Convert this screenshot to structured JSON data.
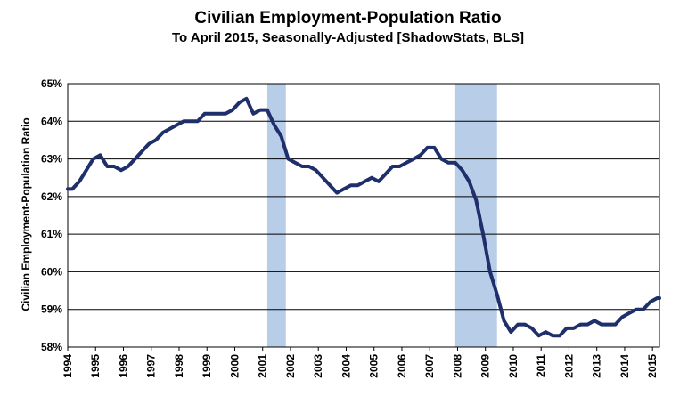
{
  "chart_data": {
    "type": "line",
    "title": "Civilian Employment-Population  Ratio",
    "subtitle": "To April 2015, Seasonally-Adjusted [ShadowStats, BLS]",
    "ylabel": "Civilian Employment-Population  Ratio",
    "xlabel": "",
    "ylim": [
      58,
      65
    ],
    "xlim": [
      "1994-01",
      "2015-04"
    ],
    "y_ticks": [
      "58%",
      "59%",
      "60%",
      "61%",
      "62%",
      "63%",
      "64%",
      "65%"
    ],
    "x_ticks": [
      "1994",
      "1995",
      "1996",
      "1997",
      "1998",
      "1999",
      "2000",
      "2001",
      "2002",
      "2003",
      "2004",
      "2005",
      "2006",
      "2007",
      "2008",
      "2009",
      "2010",
      "2011",
      "2012",
      "2013",
      "2014",
      "2015"
    ],
    "grid": true,
    "recessions": [
      {
        "start": "2001-03",
        "end": "2001-11"
      },
      {
        "start": "2007-12",
        "end": "2009-06"
      }
    ],
    "series": [
      {
        "color": "#1f2f6b",
        "points": [
          [
            "1994-01",
            62.2
          ],
          [
            "1994-03",
            62.2
          ],
          [
            "1994-06",
            62.4
          ],
          [
            "1994-09",
            62.7
          ],
          [
            "1994-12",
            63.0
          ],
          [
            "1995-03",
            63.1
          ],
          [
            "1995-06",
            62.8
          ],
          [
            "1995-09",
            62.8
          ],
          [
            "1995-12",
            62.7
          ],
          [
            "1996-03",
            62.8
          ],
          [
            "1996-06",
            63.0
          ],
          [
            "1996-09",
            63.2
          ],
          [
            "1996-12",
            63.4
          ],
          [
            "1997-03",
            63.5
          ],
          [
            "1997-06",
            63.7
          ],
          [
            "1997-09",
            63.8
          ],
          [
            "1997-12",
            63.9
          ],
          [
            "1998-03",
            64.0
          ],
          [
            "1998-06",
            64.0
          ],
          [
            "1998-09",
            64.0
          ],
          [
            "1998-12",
            64.2
          ],
          [
            "1999-03",
            64.2
          ],
          [
            "1999-06",
            64.2
          ],
          [
            "1999-09",
            64.2
          ],
          [
            "1999-12",
            64.3
          ],
          [
            "2000-03",
            64.5
          ],
          [
            "2000-06",
            64.6
          ],
          [
            "2000-09",
            64.2
          ],
          [
            "2000-12",
            64.3
          ],
          [
            "2001-03",
            64.3
          ],
          [
            "2001-06",
            63.9
          ],
          [
            "2001-09",
            63.6
          ],
          [
            "2001-12",
            63.0
          ],
          [
            "2002-03",
            62.9
          ],
          [
            "2002-06",
            62.8
          ],
          [
            "2002-09",
            62.8
          ],
          [
            "2002-12",
            62.7
          ],
          [
            "2003-03",
            62.5
          ],
          [
            "2003-06",
            62.3
          ],
          [
            "2003-09",
            62.1
          ],
          [
            "2003-12",
            62.2
          ],
          [
            "2004-03",
            62.3
          ],
          [
            "2004-06",
            62.3
          ],
          [
            "2004-09",
            62.4
          ],
          [
            "2004-12",
            62.5
          ],
          [
            "2005-03",
            62.4
          ],
          [
            "2005-06",
            62.6
          ],
          [
            "2005-09",
            62.8
          ],
          [
            "2005-12",
            62.8
          ],
          [
            "2006-03",
            62.9
          ],
          [
            "2006-06",
            63.0
          ],
          [
            "2006-09",
            63.1
          ],
          [
            "2006-12",
            63.3
          ],
          [
            "2007-03",
            63.3
          ],
          [
            "2007-06",
            63.0
          ],
          [
            "2007-09",
            62.9
          ],
          [
            "2007-12",
            62.9
          ],
          [
            "2008-03",
            62.7
          ],
          [
            "2008-06",
            62.4
          ],
          [
            "2008-09",
            61.9
          ],
          [
            "2008-12",
            61.0
          ],
          [
            "2009-03",
            60.0
          ],
          [
            "2009-06",
            59.4
          ],
          [
            "2009-09",
            58.7
          ],
          [
            "2009-12",
            58.4
          ],
          [
            "2010-03",
            58.6
          ],
          [
            "2010-06",
            58.6
          ],
          [
            "2010-09",
            58.5
          ],
          [
            "2010-12",
            58.3
          ],
          [
            "2011-03",
            58.4
          ],
          [
            "2011-06",
            58.3
          ],
          [
            "2011-09",
            58.3
          ],
          [
            "2011-12",
            58.5
          ],
          [
            "2012-03",
            58.5
          ],
          [
            "2012-06",
            58.6
          ],
          [
            "2012-09",
            58.6
          ],
          [
            "2012-12",
            58.7
          ],
          [
            "2013-03",
            58.6
          ],
          [
            "2013-06",
            58.6
          ],
          [
            "2013-09",
            58.6
          ],
          [
            "2013-12",
            58.8
          ],
          [
            "2014-03",
            58.9
          ],
          [
            "2014-06",
            59.0
          ],
          [
            "2014-09",
            59.0
          ],
          [
            "2014-12",
            59.2
          ],
          [
            "2015-03",
            59.3
          ],
          [
            "2015-04",
            59.3
          ]
        ]
      }
    ]
  }
}
